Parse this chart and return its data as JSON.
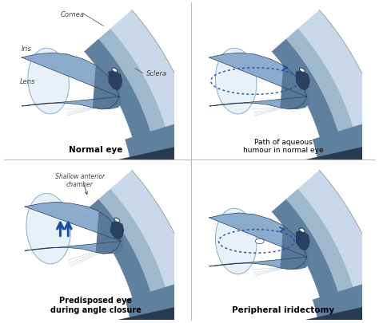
{
  "background_color": "#ffffff",
  "sclera_light": "#c8d8e8",
  "sclera_mid": "#a0b8cc",
  "sclera_dark": "#6080a0",
  "sclera_darkest": "#2a3a50",
  "iris_light": "#8aabcc",
  "iris_mid": "#5a7898",
  "iris_dark": "#2a4060",
  "lens_color": "#e8f0f8",
  "lens_border": "#8aabcc",
  "zonule_color": "#a0b8cc",
  "arrow_color": "#1a50a0",
  "dotted_color": "#1a50a0",
  "label_color": "#444444",
  "divider_color": "#bbbbbb",
  "title_normal1": "Normal eye",
  "title_normal2": "Path of aqueous\nhumour in normal eye",
  "title_pred": "Predisposed eye\nduring angle closure",
  "title_peri": "Peripheral iridectomy",
  "label_cornea": "Cornea",
  "label_iris": "Iris",
  "label_lens": "Lens",
  "label_sclera": "Sclera",
  "label_shallow": "Shallow anterior\nchamber"
}
